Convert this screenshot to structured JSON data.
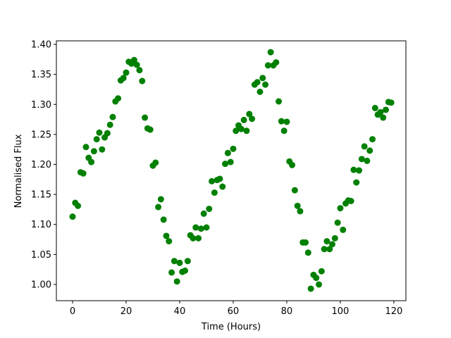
{
  "chart_data": {
    "type": "scatter",
    "xlabel": "Time (Hours)",
    "ylabel": "Normalised Flux",
    "series": [
      {
        "color": "#008000",
        "x": [
          0,
          1,
          2,
          3,
          4,
          5,
          6,
          7,
          8,
          9,
          10,
          11,
          12,
          13,
          14,
          15,
          16,
          17,
          18,
          19,
          20,
          21,
          22,
          23,
          24,
          25,
          26,
          27,
          28,
          29,
          30,
          31,
          32,
          33,
          34,
          35,
          36,
          37,
          38,
          39,
          40,
          41,
          42,
          43,
          44,
          45,
          46,
          47,
          48,
          49,
          50,
          51,
          52,
          53,
          54,
          55,
          56,
          57,
          58,
          59,
          60,
          61,
          62,
          63,
          64,
          65,
          66,
          67,
          68,
          69,
          70,
          71,
          72,
          73,
          74,
          75,
          76,
          77,
          78,
          79,
          80,
          81,
          82,
          83,
          84,
          85,
          86,
          87,
          88,
          89,
          90,
          91,
          92,
          93,
          94,
          95,
          96,
          97,
          98,
          99,
          100,
          101,
          102,
          103,
          104,
          105,
          106,
          107,
          108,
          109,
          110,
          111,
          112,
          113,
          114,
          115,
          116,
          117,
          118,
          119
        ],
        "values": [
          1.113,
          1.136,
          1.131,
          1.187,
          1.185,
          1.229,
          1.211,
          1.204,
          1.222,
          1.242,
          1.253,
          1.225,
          1.245,
          1.252,
          1.266,
          1.279,
          1.305,
          1.31,
          1.34,
          1.344,
          1.353,
          1.371,
          1.368,
          1.374,
          1.366,
          1.357,
          1.339,
          1.278,
          1.26,
          1.258,
          1.198,
          1.203,
          1.129,
          1.142,
          1.108,
          1.081,
          1.072,
          1.02,
          1.039,
          1.005,
          1.036,
          1.021,
          1.023,
          1.039,
          1.082,
          1.077,
          1.095,
          1.077,
          1.093,
          1.118,
          1.095,
          1.126,
          1.172,
          1.153,
          1.174,
          1.176,
          1.163,
          1.201,
          1.219,
          1.204,
          1.226,
          1.256,
          1.265,
          1.259,
          1.274,
          1.256,
          1.284,
          1.276,
          1.333,
          1.337,
          1.321,
          1.344,
          1.333,
          1.365,
          1.387,
          1.365,
          1.37,
          1.305,
          1.272,
          1.256,
          1.271,
          1.205,
          1.199,
          1.157,
          1.131,
          1.122,
          1.07,
          1.07,
          1.053,
          0.993,
          1.016,
          1.011,
          1.0,
          1.022,
          1.059,
          1.072,
          1.059,
          1.067,
          1.077,
          1.103,
          1.127,
          1.091,
          1.135,
          1.14,
          1.139,
          1.191,
          1.17,
          1.19,
          1.209,
          1.23,
          1.206,
          1.223,
          1.242,
          1.294,
          1.283,
          1.287,
          1.278,
          1.291,
          1.304,
          1.303
        ]
      }
    ],
    "xlim": [
      -6.05,
      124.5
    ],
    "ylim": [
      0.973,
      1.4059
    ],
    "xticks": [
      0,
      20,
      40,
      60,
      80,
      100,
      120
    ],
    "yticks": [
      {
        "value": 1.0,
        "label": "1.00"
      },
      1.05,
      {
        "value": 1.1,
        "label": "1.10"
      },
      1.15,
      {
        "value": 1.2,
        "label": "1.20"
      },
      1.25,
      {
        "value": 1.3,
        "label": "1.30"
      },
      1.35,
      {
        "value": 1.4,
        "label": "1.40"
      }
    ]
  }
}
